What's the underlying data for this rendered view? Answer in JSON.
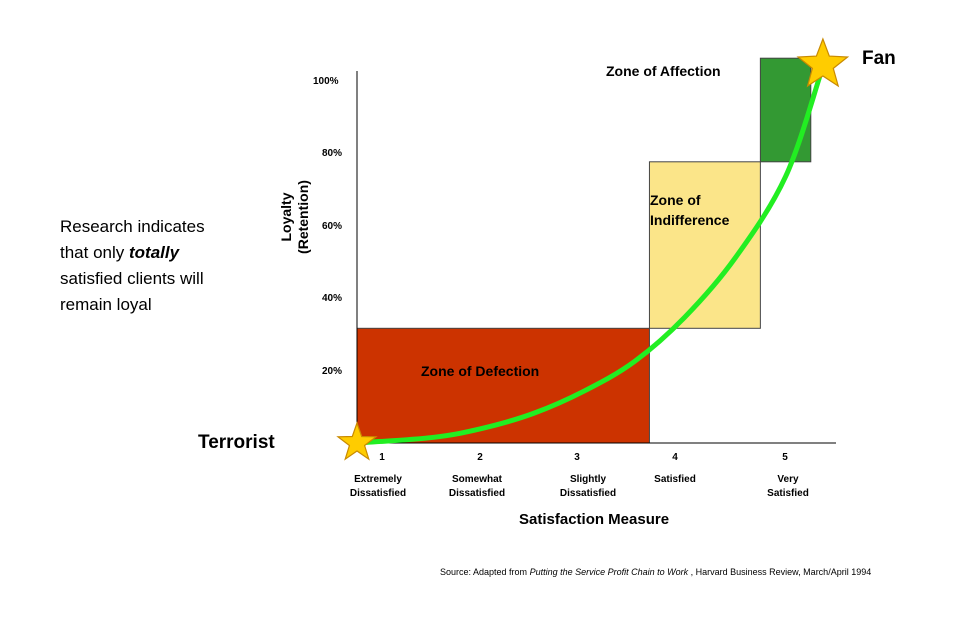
{
  "note": {
    "line1": "Research indicates",
    "line2_pre": "that only ",
    "line2_em": "totally",
    "line3": "satisfied clients will",
    "line4": "remain loyal"
  },
  "colors": {
    "defection": "#cc3300",
    "indifference": "#fbe589",
    "affection": "#339933",
    "curve": "#22ee22",
    "star": "#ffcc00"
  },
  "chart_data": {
    "type": "line",
    "xlabel": "Satisfaction Measure",
    "ylabel_line1": "Loyalty",
    "ylabel_line2": "(Retention)",
    "x_ticks": [
      {
        "num": "1",
        "label1": "Extremely",
        "label2": "Dissatisfied"
      },
      {
        "num": "2",
        "label1": "Somewhat",
        "label2": "Dissatisfied"
      },
      {
        "num": "3",
        "label1": "Slightly",
        "label2": "Dissatisfied"
      },
      {
        "num": "4",
        "label1": "Satisfied",
        "label2": ""
      },
      {
        "num": "5",
        "label1": "Very",
        "label2": "Satisfied"
      }
    ],
    "y_ticks": [
      "20%",
      "40%",
      "60%",
      "80%",
      "100%"
    ],
    "ylim": [
      0,
      100
    ],
    "xlim": [
      0.75,
      5.5
    ],
    "zones": [
      {
        "name": "Zone of Defection",
        "x_from": 0.75,
        "x_to": 3.65,
        "y_from": 0,
        "y_to": 31
      },
      {
        "name_line1": "Zone of",
        "name_line2": "Indifference",
        "x_from": 3.65,
        "x_to": 4.75,
        "y_from": 31,
        "y_to": 76
      },
      {
        "name": "Zone of Affection",
        "x_from": 4.75,
        "x_to": 5.25,
        "y_from": 76,
        "y_to": 104
      }
    ],
    "curve": {
      "x": [
        0.75,
        1.5,
        2.0,
        2.5,
        3.0,
        3.5,
        4.0,
        4.5,
        5.0,
        5.35
      ],
      "y": [
        0,
        1.5,
        4,
        8,
        14,
        22,
        34,
        50,
        72,
        100
      ]
    },
    "start_label": "Terrorist",
    "end_label": "Fan"
  },
  "source": {
    "prefix": "Source:  Adapted  from  ",
    "title": "Putting the Service Profit Chain to Work",
    "suffix": " , Harvard Business Review, March/April 1994"
  }
}
